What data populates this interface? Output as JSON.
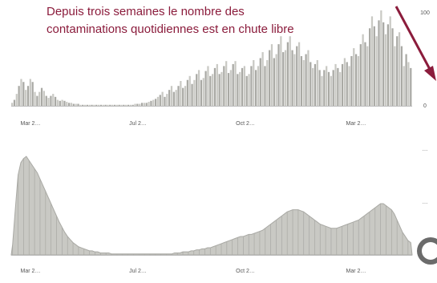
{
  "headline": {
    "line1": "Depuis trois semaines le nombre des",
    "line2": "contaminations quotidiennes est en chute libre"
  },
  "colors": {
    "bars": "#a9a9a4",
    "bars_light": "#c9c9c4",
    "headline": "#8b1c3c",
    "arrow": "#8b1c3c"
  },
  "chart_data": [
    {
      "type": "bar",
      "title": "",
      "xlabel": "",
      "ylabel": "",
      "ylim": [
        0,
        100
      ],
      "grid": false,
      "x_ticks": [
        "Mar 2…",
        "Jul 2…",
        "Oct 2…",
        "Mar 2…"
      ],
      "y_ticks": [
        "100",
        "0"
      ],
      "values": [
        3,
        6,
        12,
        20,
        27,
        24,
        16,
        20,
        27,
        24,
        14,
        10,
        14,
        18,
        15,
        10,
        8,
        10,
        12,
        9,
        6,
        5,
        6,
        5,
        4,
        3,
        3,
        2,
        2,
        2,
        1,
        1,
        1,
        1,
        1,
        1,
        1,
        1,
        1,
        1,
        1,
        1,
        1,
        1,
        1,
        1,
        1,
        1,
        1,
        1,
        1,
        1,
        1,
        1,
        2,
        2,
        2,
        3,
        3,
        3,
        4,
        5,
        6,
        7,
        9,
        11,
        14,
        9,
        12,
        16,
        20,
        14,
        16,
        20,
        25,
        18,
        20,
        26,
        30,
        22,
        26,
        32,
        36,
        26,
        28,
        35,
        40,
        30,
        32,
        38,
        42,
        32,
        34,
        40,
        45,
        33,
        36,
        42,
        45,
        32,
        34,
        38,
        40,
        30,
        32,
        40,
        46,
        36,
        40,
        48,
        54,
        40,
        46,
        56,
        62,
        48,
        52,
        62,
        70,
        54,
        56,
        64,
        70,
        56,
        52,
        60,
        64,
        50,
        46,
        52,
        56,
        44,
        38,
        42,
        46,
        36,
        30,
        36,
        40,
        34,
        30,
        36,
        42,
        38,
        34,
        42,
        48,
        44,
        40,
        50,
        58,
        52,
        50,
        62,
        72,
        64,
        60,
        78,
        90,
        80,
        70,
        86,
        96,
        84,
        72,
        82,
        90,
        78,
        60,
        70,
        74,
        60,
        40,
        52,
        44,
        38
      ]
    },
    {
      "type": "area",
      "title": "",
      "xlabel": "",
      "ylabel": "",
      "ylim": [
        0,
        100
      ],
      "grid": false,
      "x_ticks": [
        "Mar 2…",
        "Jul 2…",
        "Oct 2…",
        "Mar 2…"
      ],
      "y_ticks": [
        "…",
        "…"
      ],
      "values": [
        10,
        45,
        78,
        90,
        94,
        96,
        92,
        88,
        84,
        80,
        74,
        68,
        62,
        56,
        50,
        44,
        38,
        32,
        27,
        22,
        18,
        15,
        12,
        10,
        8,
        7,
        6,
        5,
        4,
        4,
        3,
        3,
        2,
        2,
        2,
        2,
        1,
        1,
        1,
        1,
        1,
        1,
        1,
        1,
        1,
        1,
        1,
        1,
        1,
        1,
        1,
        1,
        1,
        1,
        1,
        1,
        1,
        1,
        1,
        2,
        2,
        2,
        3,
        3,
        3,
        4,
        4,
        5,
        5,
        6,
        6,
        7,
        7,
        8,
        9,
        10,
        11,
        12,
        13,
        14,
        15,
        16,
        17,
        18,
        18,
        19,
        20,
        20,
        21,
        22,
        23,
        24,
        26,
        28,
        30,
        32,
        34,
        36,
        38,
        40,
        42,
        43,
        44,
        44,
        44,
        43,
        42,
        40,
        38,
        36,
        34,
        32,
        30,
        29,
        28,
        27,
        26,
        26,
        26,
        27,
        28,
        29,
        30,
        31,
        32,
        33,
        34,
        36,
        38,
        40,
        42,
        44,
        46,
        48,
        50,
        50,
        48,
        46,
        44,
        40,
        34,
        28,
        22,
        18,
        14,
        12
      ]
    }
  ]
}
